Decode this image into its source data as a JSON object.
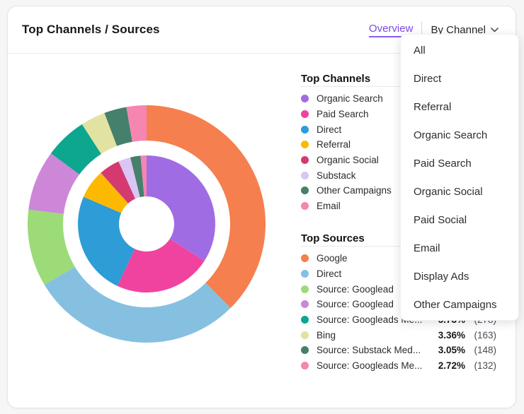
{
  "header": {
    "title": "Top Channels / Sources",
    "overview_label": "Overview",
    "filter_label": "By Channel",
    "accent_color": "#7e4ae0"
  },
  "dropdown": {
    "items": [
      "All",
      "Direct",
      "Referral",
      "Organic Search",
      "Paid Search",
      "Organic Social",
      "Paid Social",
      "Email",
      "Display Ads",
      "Other Campaigns"
    ]
  },
  "legend_channels": {
    "heading": "Top Channels",
    "items": [
      {
        "label": "Organic Search",
        "color": "#a06ce4"
      },
      {
        "label": "Paid Search",
        "color": "#f0439f"
      },
      {
        "label": "Direct",
        "color": "#2e9cd6"
      },
      {
        "label": "Referral",
        "color": "#fcb900"
      },
      {
        "label": "Organic Social",
        "color": "#d43a70"
      },
      {
        "label": "Substack",
        "color": "#d9c6f4"
      },
      {
        "label": "Other Campaigns",
        "color": "#44806b"
      },
      {
        "label": "Email",
        "color": "#f585b1"
      }
    ]
  },
  "legend_sources": {
    "heading": "Top Sources",
    "items": [
      {
        "label": "Google",
        "color": "#f57f4f"
      },
      {
        "label": "Direct",
        "color": "#85c0e0"
      },
      {
        "label": "Source: Googlead",
        "color": "#9cdb77"
      },
      {
        "label": "Source: Googlead",
        "color": "#cd86d8"
      },
      {
        "label": "Source: Googleads Me...",
        "color": "#0ca78e",
        "pct": "5.73%",
        "count": "(278)"
      },
      {
        "label": "Bing",
        "color": "#e2e2a2",
        "pct": "3.36%",
        "count": "(163)"
      },
      {
        "label": "Source: Substack Med...",
        "color": "#44806b",
        "pct": "3.05%",
        "count": "(148)"
      },
      {
        "label": "Source: Googleads Me...",
        "color": "#f585b1",
        "pct": "2.72%",
        "count": "(132)"
      }
    ]
  },
  "chart_data": {
    "type": "donut",
    "title": "Top Channels / Sources",
    "legend_position": "right",
    "start_angle_deg": 0,
    "direction": "clockwise",
    "rings": [
      {
        "name": "channels",
        "inner_radius": 39,
        "outer_radius": 97,
        "segments": [
          {
            "label": "Organic Search",
            "pct": 34.1,
            "color": "#a06ce4"
          },
          {
            "label": "Paid Search",
            "pct": 22.9,
            "color": "#f0439f"
          },
          {
            "label": "Direct",
            "pct": 24.5,
            "color": "#2e9cd6"
          },
          {
            "label": "Referral",
            "pct": 6.9,
            "color": "#fcb900"
          },
          {
            "label": "Organic Social",
            "pct": 4.9,
            "color": "#d43a70"
          },
          {
            "label": "Substack",
            "pct": 2.9,
            "color": "#d9c6f4"
          },
          {
            "label": "Other Campaigns",
            "pct": 2.4,
            "color": "#44806b"
          },
          {
            "label": "Email",
            "pct": 1.4,
            "color": "#f585b1"
          }
        ]
      },
      {
        "name": "sources",
        "inner_radius": 118,
        "outer_radius": 168,
        "segments": [
          {
            "label": "Google",
            "pct": 37.5,
            "color": "#f57f4f"
          },
          {
            "label": "Direct",
            "pct": 28.9,
            "color": "#85c0e0"
          },
          {
            "label": "Source: Googlead",
            "pct": 10.5,
            "color": "#9cdb77"
          },
          {
            "label": "Source: Googlead 2",
            "pct": 8.2,
            "color": "#cd86d8"
          },
          {
            "label": "Source: Googleads Me",
            "pct": 5.73,
            "color": "#0ca78e",
            "count": 278
          },
          {
            "label": "Bing",
            "pct": 3.36,
            "color": "#e2e2a2",
            "count": 163
          },
          {
            "label": "Source: Substack Med",
            "pct": 3.05,
            "color": "#44806b",
            "count": 148
          },
          {
            "label": "Source: Googleads Me 2",
            "pct": 2.72,
            "color": "#f585b1",
            "count": 132
          }
        ]
      }
    ]
  }
}
